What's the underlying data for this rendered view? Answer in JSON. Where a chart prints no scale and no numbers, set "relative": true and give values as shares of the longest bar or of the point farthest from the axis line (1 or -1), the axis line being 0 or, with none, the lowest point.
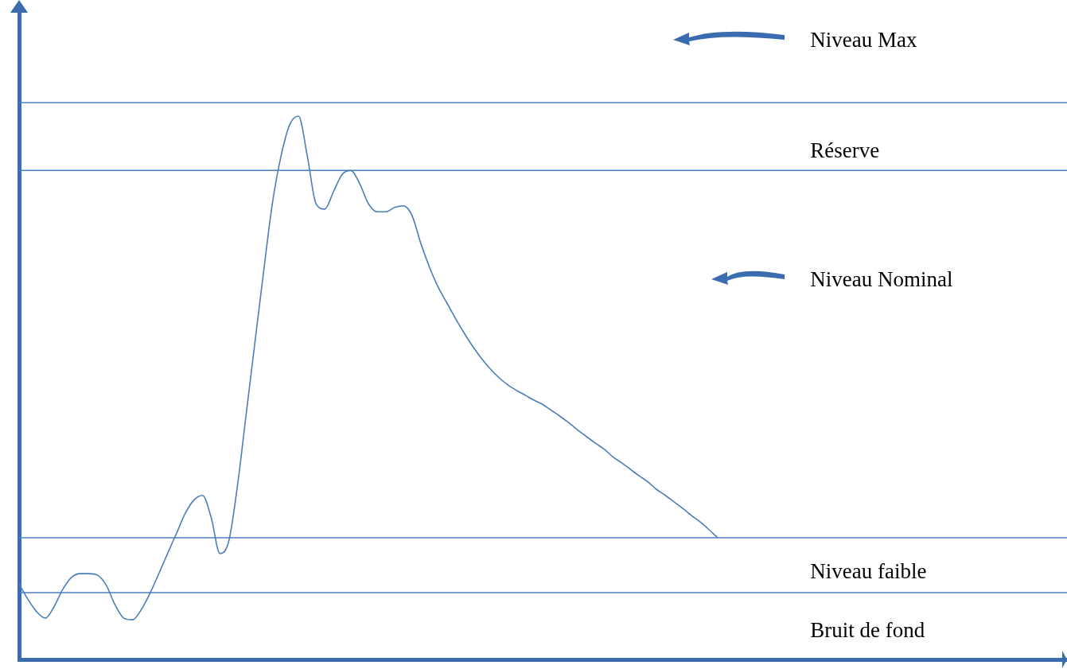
{
  "chart_data": {
    "type": "line",
    "relative": true,
    "categories": [
      null,
      null,
      null,
      null,
      null,
      null,
      null,
      null,
      null,
      null,
      null,
      null,
      null,
      null,
      null,
      null,
      null,
      null,
      null,
      null,
      null,
      null,
      null,
      null,
      null,
      null,
      null,
      null,
      null,
      null,
      null,
      null,
      null,
      null,
      null,
      null,
      null,
      null,
      null,
      null,
      null,
      null,
      null,
      null,
      null,
      null,
      null,
      null,
      null,
      null,
      null,
      null,
      null,
      null,
      null,
      null,
      null,
      null,
      null,
      null,
      null,
      null,
      null,
      null,
      null,
      null,
      null,
      null,
      null,
      null,
      null,
      null,
      null,
      null,
      null,
      null,
      null,
      null,
      null,
      null,
      null,
      null,
      null,
      null,
      null,
      null,
      null,
      null,
      null,
      null,
      null,
      null,
      null,
      null,
      null,
      null,
      null,
      null,
      null,
      null,
      null,
      null,
      null,
      null,
      null,
      null,
      null,
      null,
      null,
      null,
      null,
      null,
      null,
      null,
      null,
      null,
      null,
      null,
      null,
      null,
      null
    ],
    "series": [
      {
        "color": "#4a7ebb",
        "values": [
          0.139,
          0.111,
          0.088,
          0.076,
          0.097,
          0.129,
          0.151,
          0.158,
          0.158,
          0.155,
          0.136,
          0.1,
          0.076,
          0.073,
          0.092,
          0.122,
          0.158,
          0.195,
          0.231,
          0.268,
          0.293,
          0.302,
          0.261,
          0.195,
          0.217,
          0.319,
          0.451,
          0.583,
          0.714,
          0.839,
          0.927,
          0.985,
          1.0,
          0.927,
          0.839,
          0.829,
          0.861,
          0.893,
          0.9,
          0.876,
          0.839,
          0.824,
          0.824,
          0.832,
          0.835,
          0.817,
          0.766,
          0.722,
          0.685,
          0.656,
          0.627,
          0.6,
          0.575,
          0.553,
          0.534,
          0.518,
          0.505,
          0.495,
          0.486,
          0.477,
          0.469,
          0.458,
          0.447,
          0.435,
          0.422,
          0.41,
          0.398,
          0.387,
          0.373,
          0.362,
          0.35,
          0.338,
          0.327,
          0.313,
          0.302,
          0.29,
          0.278,
          0.265,
          0.253,
          0.239,
          0.224,
          null,
          null,
          null,
          null,
          null,
          null,
          null,
          null,
          null,
          null,
          null,
          null,
          null,
          null,
          null,
          null,
          null,
          null,
          null,
          null,
          null,
          null,
          null,
          null,
          null,
          null,
          null,
          null,
          null,
          null,
          null,
          null,
          null,
          null,
          null,
          null,
          null,
          null,
          null,
          null
        ]
      }
    ],
    "marker": "none",
    "line_style": "solid",
    "grid": false,
    "legend": false,
    "tick_labels": false,
    "ref_lines": [
      {
        "axis": "y",
        "value": 1.025,
        "color": "#4a7ebb"
      },
      {
        "axis": "y",
        "value": 0.9,
        "color": "#4a7ebb"
      },
      {
        "axis": "y",
        "value": 0.224,
        "color": "#4a7ebb"
      },
      {
        "axis": "y",
        "value": 0.123,
        "color": "#4a7ebb"
      }
    ],
    "annotations": [
      "Niveau Max",
      "Réserve",
      "Niveau Nominal",
      "Niveau faible",
      "Bruit de fond"
    ]
  }
}
